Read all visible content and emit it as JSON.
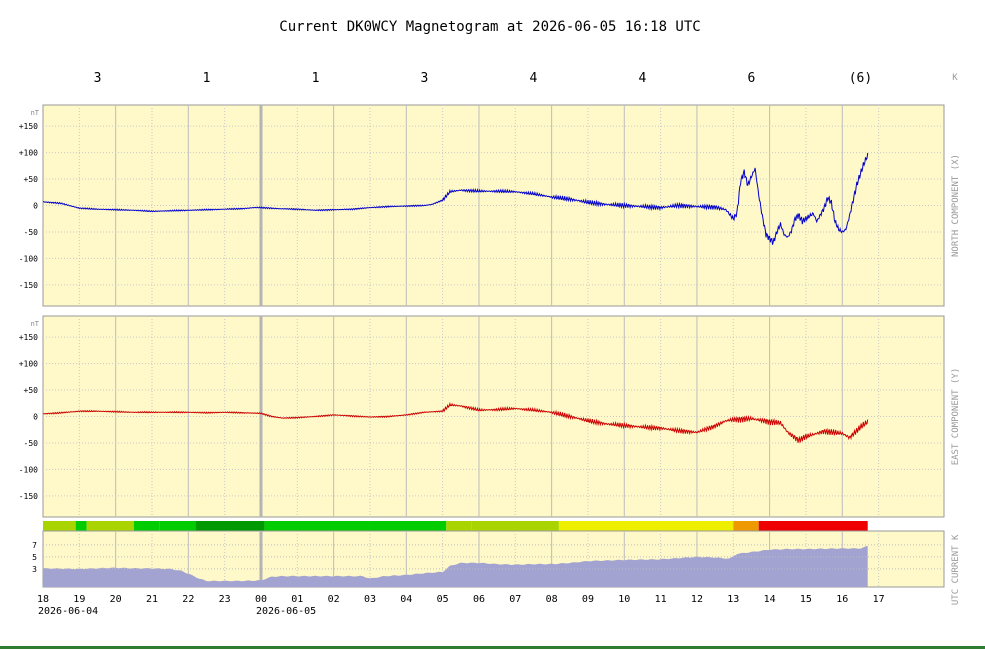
{
  "chart_data": {
    "type": "line",
    "title": "Current DK0WCY Magnetogram at 2026-06-05 16:18 UTC",
    "k_header": {
      "values": [
        "3",
        "1",
        "1",
        "3",
        "4",
        "4",
        "6",
        "(6)"
      ],
      "label": "K"
    },
    "x_axis": {
      "ticks": [
        "18",
        "19",
        "20",
        "21",
        "22",
        "23",
        "00",
        "01",
        "02",
        "03",
        "04",
        "05",
        "06",
        "07",
        "08",
        "09",
        "10",
        "11",
        "12",
        "13",
        "14",
        "15",
        "16",
        "17"
      ],
      "date_labels": [
        {
          "hour_index": 0,
          "text": "2026-06-04"
        },
        {
          "hour_index": 6,
          "text": "2026-06-05"
        }
      ],
      "label": "UTC",
      "range_hours": [
        0,
        24.8
      ]
    },
    "panels": [
      {
        "name": "north",
        "label": "NORTH COMPONENT (X)",
        "unit": "nT",
        "yticks": [
          "+150",
          "+100",
          "+50",
          "0",
          "-50",
          "-100",
          "-150"
        ],
        "ylim": [
          -190,
          190
        ],
        "color": "#0000cc",
        "knots": [
          [
            0,
            7
          ],
          [
            0.5,
            4
          ],
          [
            1,
            -5
          ],
          [
            1.5,
            -7
          ],
          [
            2,
            -8
          ],
          [
            2.5,
            -9
          ],
          [
            3,
            -11
          ],
          [
            3.5,
            -10
          ],
          [
            4,
            -9
          ],
          [
            4.5,
            -8
          ],
          [
            5,
            -7
          ],
          [
            5.5,
            -6
          ],
          [
            5.8,
            -4
          ],
          [
            6,
            -4
          ],
          [
            6.5,
            -6
          ],
          [
            7,
            -7
          ],
          [
            7.5,
            -9
          ],
          [
            8,
            -8
          ],
          [
            8.5,
            -7
          ],
          [
            9,
            -4
          ],
          [
            9.5,
            -2
          ],
          [
            10,
            -1
          ],
          [
            10.5,
            0
          ],
          [
            10.7,
            2
          ],
          [
            11,
            10
          ],
          [
            11.2,
            26
          ],
          [
            11.5,
            29
          ],
          [
            12,
            27
          ],
          [
            12.5,
            27
          ],
          [
            13,
            26
          ],
          [
            13.5,
            22
          ],
          [
            14,
            16
          ],
          [
            14.5,
            12
          ],
          [
            15,
            6
          ],
          [
            15.5,
            2
          ],
          [
            16,
            0
          ],
          [
            16.5,
            -2
          ],
          [
            17,
            -4
          ],
          [
            17.5,
            0
          ],
          [
            18,
            -2
          ],
          [
            18.5,
            -3
          ],
          [
            18.8,
            -8
          ],
          [
            19,
            -25
          ],
          [
            19.1,
            -15
          ],
          [
            19.2,
            45
          ],
          [
            19.3,
            64
          ],
          [
            19.4,
            38
          ],
          [
            19.5,
            55
          ],
          [
            19.6,
            70
          ],
          [
            19.7,
            20
          ],
          [
            19.8,
            -20
          ],
          [
            19.9,
            -55
          ],
          [
            20,
            -62
          ],
          [
            20.1,
            -70
          ],
          [
            20.2,
            -50
          ],
          [
            20.3,
            -35
          ],
          [
            20.4,
            -55
          ],
          [
            20.5,
            -60
          ],
          [
            20.6,
            -48
          ],
          [
            20.7,
            -25
          ],
          [
            20.8,
            -18
          ],
          [
            20.9,
            -30
          ],
          [
            21,
            -25
          ],
          [
            21.2,
            -15
          ],
          [
            21.3,
            -30
          ],
          [
            21.5,
            -5
          ],
          [
            21.6,
            15
          ],
          [
            21.7,
            5
          ],
          [
            21.8,
            -30
          ],
          [
            21.9,
            -45
          ],
          [
            22,
            -50
          ],
          [
            22.1,
            -45
          ],
          [
            22.2,
            -20
          ],
          [
            22.3,
            10
          ],
          [
            22.4,
            40
          ],
          [
            22.5,
            60
          ],
          [
            22.6,
            80
          ],
          [
            22.7,
            95
          ]
        ]
      },
      {
        "name": "east",
        "label": "EAST COMPONENT (Y)",
        "unit": "nT",
        "yticks": [
          "+150",
          "+100",
          "+50",
          "0",
          "-50",
          "-100",
          "-150"
        ],
        "ylim": [
          -190,
          190
        ],
        "color": "#cc0000",
        "knots": [
          [
            0,
            5
          ],
          [
            0.5,
            7
          ],
          [
            1,
            10
          ],
          [
            1.5,
            10
          ],
          [
            2,
            9
          ],
          [
            2.5,
            8
          ],
          [
            3,
            8
          ],
          [
            3.5,
            8
          ],
          [
            4,
            8
          ],
          [
            4.5,
            7
          ],
          [
            5,
            8
          ],
          [
            5.5,
            7
          ],
          [
            6,
            6
          ],
          [
            6.3,
            0
          ],
          [
            6.6,
            -3
          ],
          [
            7,
            -2
          ],
          [
            7.5,
            0
          ],
          [
            8,
            3
          ],
          [
            8.5,
            1
          ],
          [
            9,
            -1
          ],
          [
            9.5,
            0
          ],
          [
            10,
            3
          ],
          [
            10.5,
            8
          ],
          [
            11,
            10
          ],
          [
            11.2,
            22
          ],
          [
            11.5,
            20
          ],
          [
            12,
            12
          ],
          [
            12.5,
            13
          ],
          [
            13,
            15
          ],
          [
            13.5,
            12
          ],
          [
            14,
            8
          ],
          [
            14.5,
            0
          ],
          [
            15,
            -8
          ],
          [
            15.5,
            -14
          ],
          [
            16,
            -17
          ],
          [
            16.5,
            -20
          ],
          [
            17,
            -22
          ],
          [
            17.5,
            -27
          ],
          [
            18,
            -30
          ],
          [
            18.5,
            -18
          ],
          [
            18.8,
            -8
          ],
          [
            19,
            -6
          ],
          [
            19.5,
            -4
          ],
          [
            20,
            -10
          ],
          [
            20.3,
            -12
          ],
          [
            20.5,
            -30
          ],
          [
            20.8,
            -45
          ],
          [
            21,
            -38
          ],
          [
            21.3,
            -32
          ],
          [
            21.5,
            -28
          ],
          [
            22,
            -32
          ],
          [
            22.2,
            -40
          ],
          [
            22.5,
            -20
          ],
          [
            22.7,
            -10
          ]
        ]
      },
      {
        "name": "current-k",
        "label": "CURRENT K",
        "type": "area",
        "yticks": [
          "7",
          "5",
          "3"
        ],
        "ylim": [
          0,
          9.3
        ],
        "color": "#a3a3d1",
        "knots": [
          [
            0,
            3.1
          ],
          [
            1,
            3.0
          ],
          [
            1.5,
            3.1
          ],
          [
            2,
            3.2
          ],
          [
            2.5,
            3.1
          ],
          [
            3,
            3.1
          ],
          [
            3.5,
            3.0
          ],
          [
            3.8,
            2.7
          ],
          [
            4,
            2.2
          ],
          [
            4.3,
            1.4
          ],
          [
            4.5,
            1.0
          ],
          [
            5,
            1.0
          ],
          [
            5.5,
            1.0
          ],
          [
            6,
            1.1
          ],
          [
            6.3,
            1.7
          ],
          [
            6.6,
            1.8
          ],
          [
            7,
            1.8
          ],
          [
            8,
            1.8
          ],
          [
            8.8,
            1.8
          ],
          [
            9,
            1.4
          ],
          [
            9.4,
            1.8
          ],
          [
            10,
            2.0
          ],
          [
            10.5,
            2.3
          ],
          [
            11,
            2.5
          ],
          [
            11.2,
            3.5
          ],
          [
            11.5,
            4.0
          ],
          [
            12,
            4.0
          ],
          [
            12.5,
            3.8
          ],
          [
            13,
            3.7
          ],
          [
            13.5,
            3.8
          ],
          [
            14,
            3.8
          ],
          [
            14.5,
            4.0
          ],
          [
            15,
            4.3
          ],
          [
            16,
            4.5
          ],
          [
            17,
            4.6
          ],
          [
            17.5,
            4.8
          ],
          [
            18,
            5.0
          ],
          [
            18.5,
            4.9
          ],
          [
            18.9,
            4.7
          ],
          [
            19.1,
            5.5
          ],
          [
            19.5,
            5.8
          ],
          [
            20,
            6.2
          ],
          [
            20.5,
            6.3
          ],
          [
            21,
            6.3
          ],
          [
            22,
            6.4
          ],
          [
            22.5,
            6.4
          ],
          [
            22.7,
            6.8
          ]
        ],
        "strip": {
          "segments": [
            {
              "start": 0,
              "end": 0.9,
              "k": 3
            },
            {
              "start": 0.9,
              "end": 1.2,
              "k": 2
            },
            {
              "start": 1.2,
              "end": 2.5,
              "k": 3
            },
            {
              "start": 2.5,
              "end": 3.2,
              "k": 2
            },
            {
              "start": 3.2,
              "end": 4.2,
              "k": 2
            },
            {
              "start": 4.2,
              "end": 6.1,
              "k": 1
            },
            {
              "start": 6.1,
              "end": 9.0,
              "k": 2
            },
            {
              "start": 9.0,
              "end": 11.1,
              "k": 2
            },
            {
              "start": 11.1,
              "end": 11.8,
              "k": 3
            },
            {
              "start": 11.8,
              "end": 14.2,
              "k": 3
            },
            {
              "start": 14.2,
              "end": 19.0,
              "k": 4
            },
            {
              "start": 19.0,
              "end": 19.7,
              "k": 5
            },
            {
              "start": 19.7,
              "end": 22.7,
              "k": 6
            }
          ],
          "colors": {
            "1": "#009900",
            "2": "#00cc00",
            "3": "#aad400",
            "4": "#eeee00",
            "5": "#ee9900",
            "6": "#ee0000"
          }
        }
      }
    ],
    "colors": {
      "plot_background": "#fff8c8",
      "grid": "#c8c8c8",
      "day_divider": "#b4b4b4"
    },
    "grid": true
  }
}
